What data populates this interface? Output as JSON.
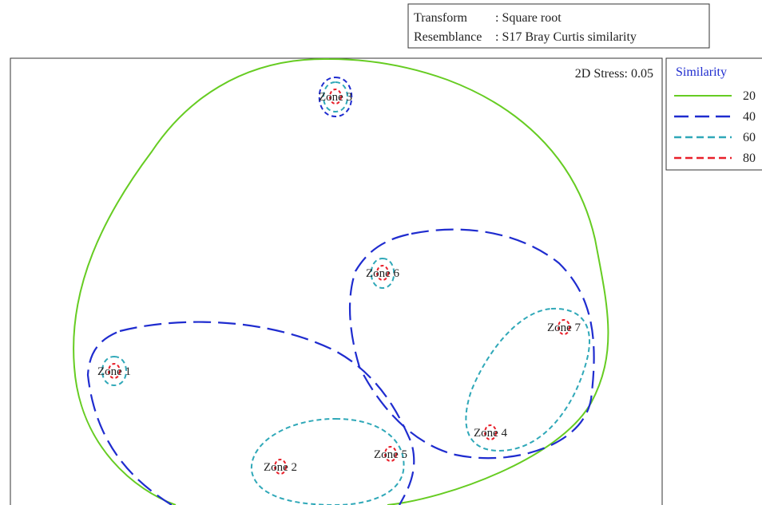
{
  "chart_data": {
    "type": "scatter",
    "title": "",
    "stress_label": "2D Stress: 0.05",
    "info_box": [
      {
        "key": "Transform",
        "value": "Square root"
      },
      {
        "key": "Resemblance",
        "value": "S17 Bray Curtis similarity"
      }
    ],
    "points": [
      {
        "label": "Zone 1"
      },
      {
        "label": "Zone 2"
      },
      {
        "label": "Zone 3"
      },
      {
        "label": "Zone 4"
      },
      {
        "label": "Zone 5"
      },
      {
        "label": "Zone 6"
      },
      {
        "label": "Zone 7"
      }
    ],
    "legend": {
      "title": "Similarity",
      "placement": "right",
      "entries": [
        {
          "value": "20",
          "color": "#66cc22",
          "style": "solid"
        },
        {
          "value": "40",
          "color": "#1f2ccf",
          "style": "long-dash"
        },
        {
          "value": "60",
          "color": "#2fa8b8",
          "style": "dash"
        },
        {
          "value": "80",
          "color": "#e8202a",
          "style": "dash"
        }
      ]
    },
    "groups": {
      "20": [
        [
          "Zone 1",
          "Zone 2",
          "Zone 3",
          "Zone 4",
          "Zone 5",
          "Zone 6",
          "Zone 7"
        ]
      ],
      "40": [
        [
          "Zone 3"
        ],
        [
          "Zone 1",
          "Zone 2",
          "Zone 5"
        ],
        [
          "Zone 4",
          "Zone 6",
          "Zone 7"
        ]
      ],
      "60": [
        [
          "Zone 1"
        ],
        [
          "Zone 2",
          "Zone 5"
        ],
        [
          "Zone 3"
        ],
        [
          "Zone 4",
          "Zone 7"
        ],
        [
          "Zone 6"
        ]
      ],
      "80": [
        [
          "Zone 1"
        ],
        [
          "Zone 2"
        ],
        [
          "Zone 3"
        ],
        [
          "Zone 4"
        ],
        [
          "Zone 5"
        ],
        [
          "Zone 6"
        ],
        [
          "Zone 7"
        ]
      ]
    }
  }
}
